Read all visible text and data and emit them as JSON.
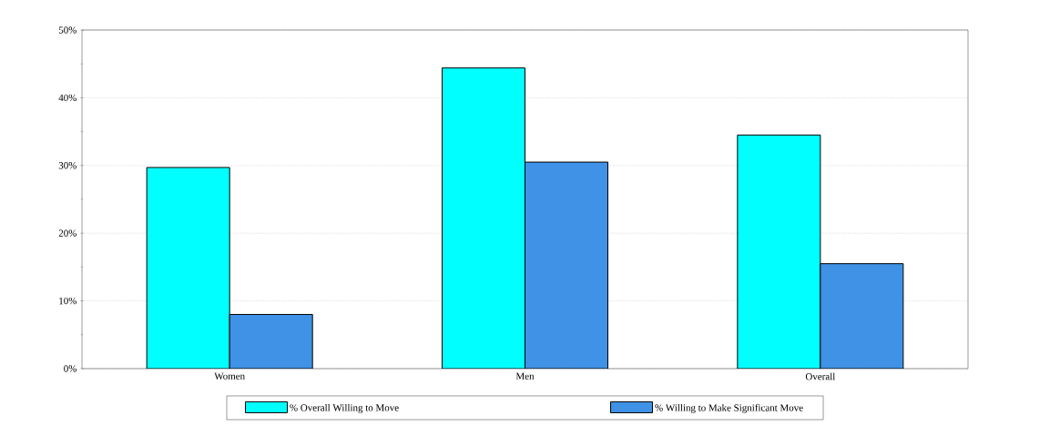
{
  "chart_data": {
    "type": "bar",
    "categories": [
      "Women",
      "Men",
      "Overall"
    ],
    "series": [
      {
        "name": "% Overall Willing to Move",
        "color": "#00ffff",
        "values": [
          29.7,
          44.4,
          34.5
        ]
      },
      {
        "name": "% Willing to Make Significant Move",
        "color": "#3f92e6",
        "values": [
          8.0,
          30.5,
          15.5
        ]
      }
    ],
    "ylim": [
      0,
      50
    ],
    "yticks": [
      {
        "value": 0,
        "label": "0%"
      },
      {
        "value": 10,
        "label": "10%"
      },
      {
        "value": 20,
        "label": "20%"
      },
      {
        "value": 30,
        "label": "30%"
      },
      {
        "value": 40,
        "label": "40%"
      },
      {
        "value": 50,
        "label": "50%"
      }
    ],
    "grid": "y",
    "legend": "bottom"
  }
}
